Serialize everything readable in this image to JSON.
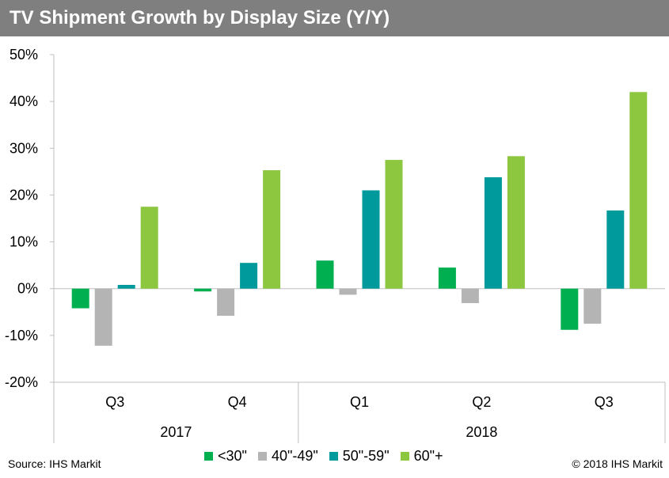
{
  "title": "TV Shipment Growth by Display Size (Y/Y)",
  "source": "Source: IHS Markit",
  "copyright": "© 2018 IHS Markit",
  "chart_data": {
    "type": "bar",
    "title": "TV Shipment Growth by Display Size (Y/Y)",
    "xlabel": "",
    "ylabel": "",
    "categories": [
      "Q3",
      "Q4",
      "Q1",
      "Q2",
      "Q3"
    ],
    "groups": [
      {
        "label": "2017",
        "categories": [
          "Q3",
          "Q4"
        ]
      },
      {
        "label": "2018",
        "categories": [
          "Q1",
          "Q2",
          "Q3"
        ]
      }
    ],
    "series": [
      {
        "name": "<30\"",
        "color": "#00b050",
        "values": [
          -4.2,
          -0.6,
          6.0,
          4.5,
          -8.8
        ]
      },
      {
        "name": "40\"-49\"",
        "color": "#b4b4b4",
        "values": [
          -12.2,
          -5.8,
          -1.3,
          -3.1,
          -7.5
        ]
      },
      {
        "name": "50\"-59\"",
        "color": "#00999c",
        "values": [
          0.8,
          5.5,
          21.0,
          23.8,
          16.7
        ]
      },
      {
        "name": "60\"+",
        "color": "#8dc63f",
        "values": [
          17.5,
          25.3,
          27.5,
          28.3,
          42.0
        ]
      }
    ],
    "ylim": [
      -20,
      50
    ],
    "yticks": [
      -20,
      -10,
      0,
      10,
      20,
      30,
      40,
      50
    ],
    "ytick_labels": [
      "-20%",
      "-10%",
      "0%",
      "10%",
      "20%",
      "30%",
      "40%",
      "50%"
    ],
    "grid": false,
    "legend_position": "bottom"
  }
}
